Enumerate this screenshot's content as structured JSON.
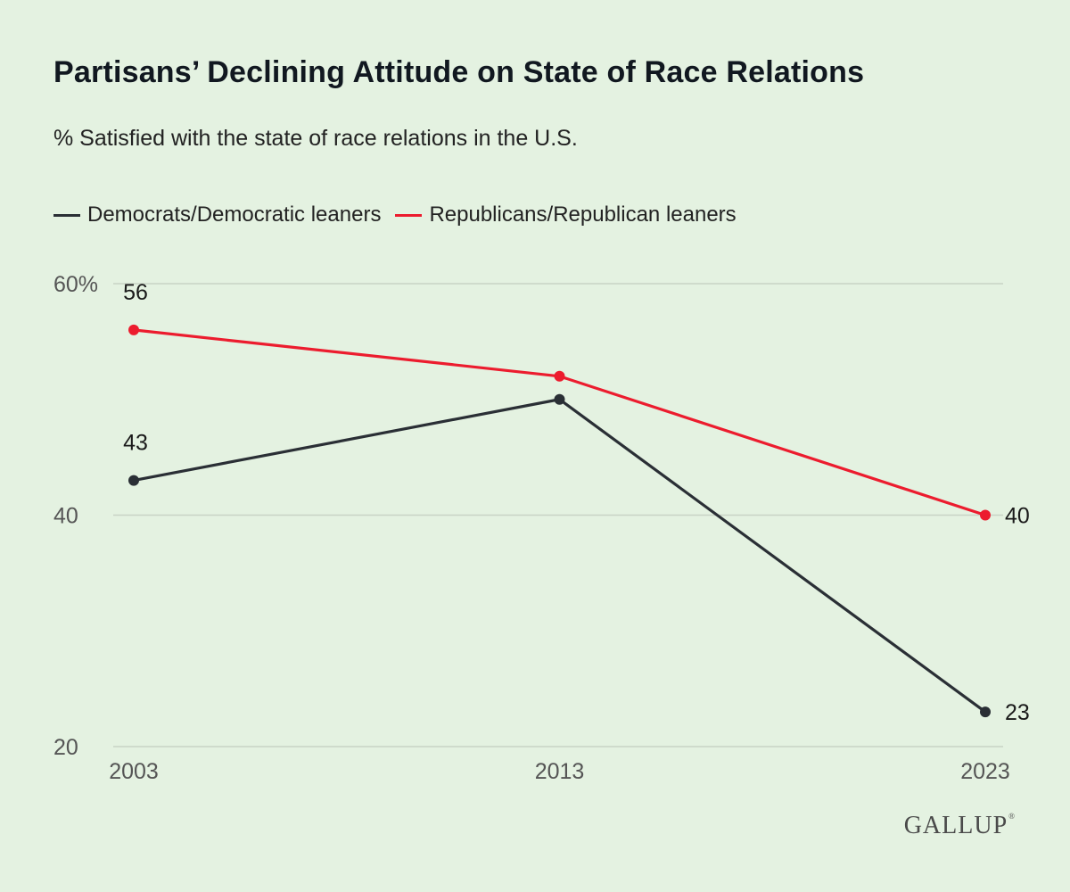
{
  "chart_data": {
    "type": "line",
    "title": "Partisans’ Declining Attitude on State of Race Relations",
    "subtitle": "% Satisfied with the state of race relations in the U.S.",
    "x": [
      2003,
      2013,
      2023
    ],
    "x_tick_labels": [
      "2003",
      "2013",
      "2023"
    ],
    "y_ticks": [
      {
        "value": 20,
        "label": "20"
      },
      {
        "value": 40,
        "label": "40"
      },
      {
        "value": 60,
        "label": "60%"
      }
    ],
    "ylim": [
      20,
      60
    ],
    "grid": true,
    "legend_position": "top-left",
    "series": [
      {
        "name": "Democrats/Democratic leaners",
        "color": "#2a2f35",
        "values": [
          43,
          50,
          23
        ],
        "labels": [
          "43",
          "",
          "23"
        ]
      },
      {
        "name": "Republicans/Republican leaners",
        "color": "#ec1c2e",
        "values": [
          56,
          52,
          40
        ],
        "labels": [
          "56",
          "",
          "40"
        ]
      }
    ]
  },
  "branding": {
    "logo_text": "GALLUP"
  }
}
